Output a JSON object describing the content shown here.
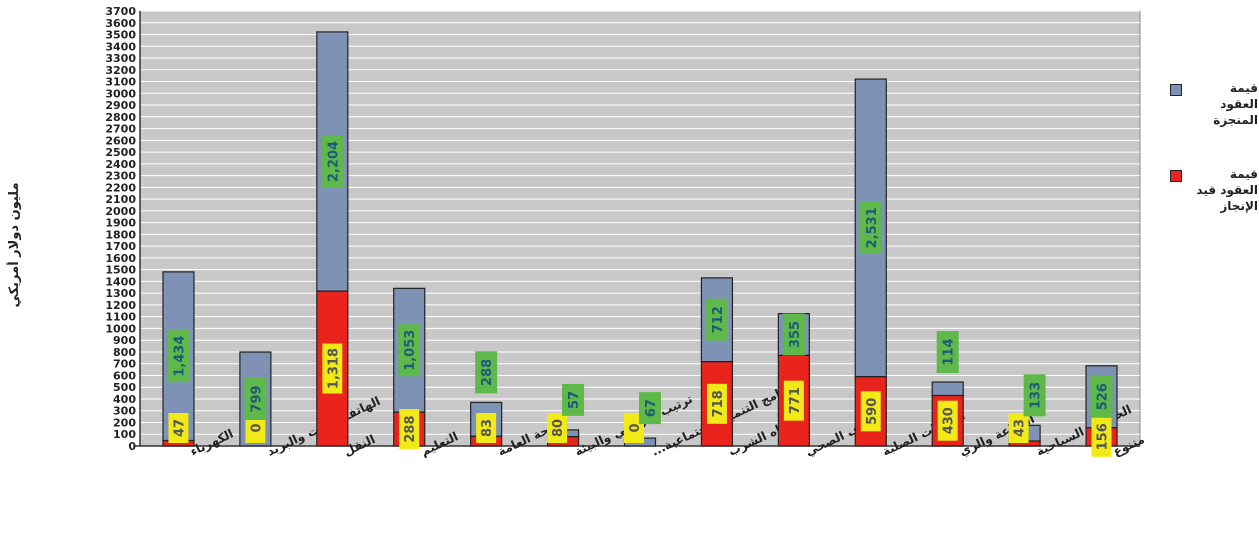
{
  "chart_data": {
    "type": "bar",
    "stacked": true,
    "ylabel": "مليون دولار أمريكي",
    "ylim": [
      0,
      3700
    ],
    "yticks": [
      0,
      100,
      200,
      300,
      400,
      500,
      600,
      700,
      800,
      900,
      1000,
      1100,
      1200,
      1300,
      1400,
      1500,
      1600,
      1700,
      1800,
      1900,
      2000,
      2100,
      2200,
      2300,
      2400,
      2500,
      2600,
      2700,
      2800,
      2900,
      3000,
      3100,
      3200,
      3300,
      3400,
      3500,
      3600,
      3700
    ],
    "grid": true,
    "legend_position": "right",
    "categories": [
      "الكهرباء",
      "الهاتف الثابت والبريد",
      "النقل",
      "التعليم",
      "الصحة العامة",
      "ترتيب الأراضي والبيئة",
      "برامج التنمية الإجتماعية...",
      "مياه الشرب",
      "الصرف الصحي",
      "النفايات الصلبة",
      "الزراعة والري",
      "الخدمات السياحية",
      "متنوع"
    ],
    "series": [
      {
        "name": "قيمة العقود قيد الإنجاز",
        "color": "#e8241c",
        "values": [
          47,
          0,
          1318,
          288,
          83,
          80,
          0,
          718,
          771,
          590,
          430,
          43,
          156
        ],
        "labels": [
          "47",
          "0",
          "1,318",
          "288",
          "83",
          "80",
          "0",
          "718",
          "771",
          "590",
          "430",
          "43",
          "156"
        ]
      },
      {
        "name": "قيمة العقود المنجزة",
        "color": "#7d92b4",
        "values": [
          1434,
          799,
          2204,
          1053,
          288,
          57,
          67,
          712,
          355,
          2531,
          114,
          133,
          526
        ],
        "labels": [
          "1,434",
          "799",
          "2,204",
          "1,053",
          "288",
          "57",
          "67",
          "712",
          "355",
          "2,531",
          "114",
          "133",
          "526"
        ]
      }
    ],
    "colors": {
      "plot_bg": "#c8c8c8",
      "grid": "#ffffff",
      "label_inprogress_bg": "#f2ea17",
      "label_completed_bg": "#5fb94a",
      "label_completed_text": "#1c5b7a",
      "label_inprogress_text": "#555555"
    }
  }
}
